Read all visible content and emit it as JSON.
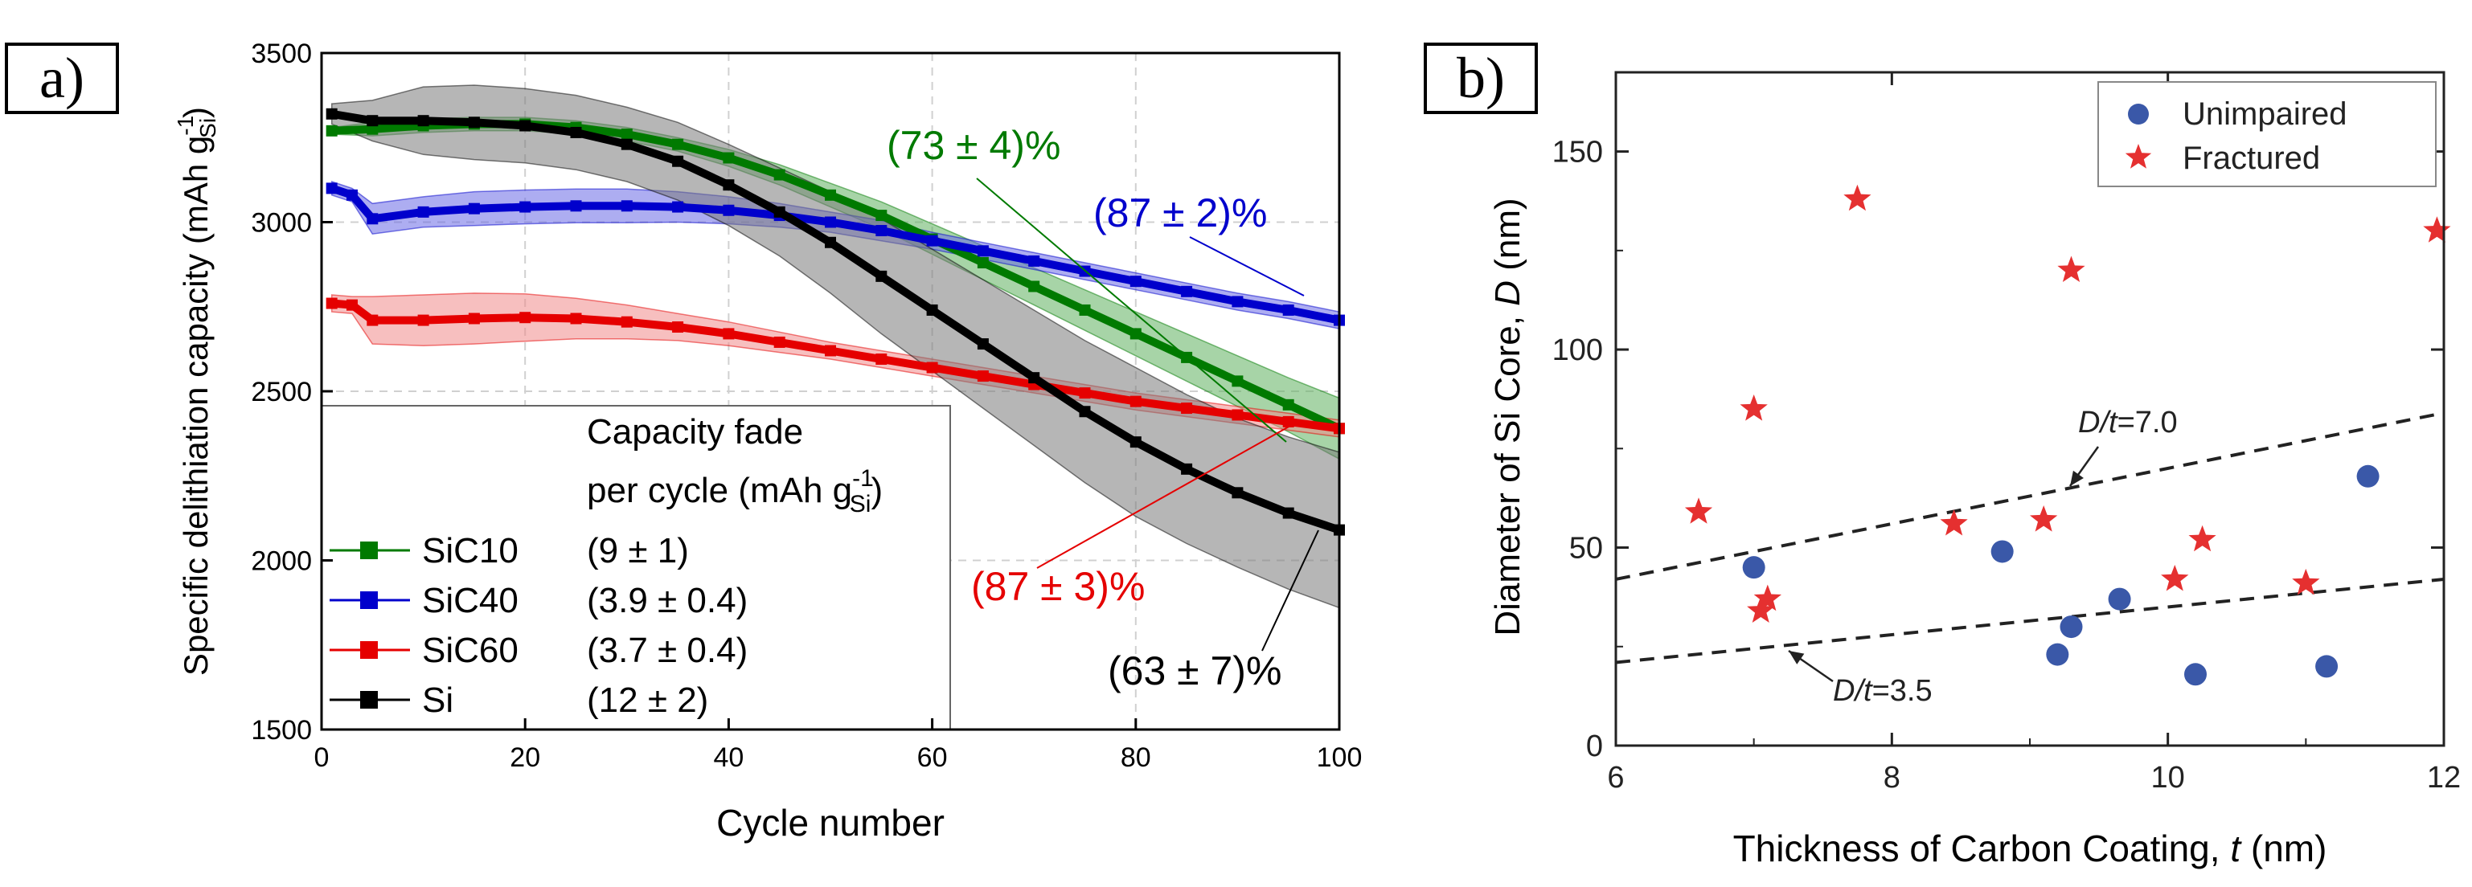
{
  "panels": [
    {
      "label": "a)"
    },
    {
      "label": "b)"
    }
  ],
  "chart_data": [
    {
      "type": "line",
      "xlabel": "Cycle number",
      "ylabel_main": "Specific delithiation capacity (mAh g",
      "ylabel_sup": "-1",
      "ylabel_sub": "Si",
      "ylabel_close": ")",
      "xlim": [
        0,
        100
      ],
      "ylim": [
        1500,
        3500
      ],
      "xticks": [
        "0",
        "20",
        "40",
        "60",
        "80",
        "100"
      ],
      "yticks": [
        "1500",
        "2000",
        "2500",
        "3000",
        "3500"
      ],
      "grid": true,
      "legend_header_1": "Capacity fade",
      "legend_header_2_main": "per cycle (mAh g",
      "legend_header_2_sup": "-1",
      "legend_header_2_sub": "Si",
      "legend_header_2_close": ")",
      "series": [
        {
          "name": "SiC10",
          "color": "#007a00",
          "band_color": "#5fb15f",
          "fade": "(9 ± 1)",
          "retention": "(73 ± 4)%",
          "x": [
            1,
            5,
            10,
            15,
            20,
            25,
            30,
            35,
            40,
            45,
            50,
            55,
            60,
            65,
            70,
            75,
            80,
            85,
            90,
            95,
            100
          ],
          "y": [
            3270,
            3275,
            3285,
            3290,
            3290,
            3280,
            3260,
            3230,
            3190,
            3140,
            3080,
            3020,
            2950,
            2880,
            2810,
            2740,
            2670,
            2600,
            2530,
            2460,
            2390
          ],
          "band": [
            10,
            20,
            20,
            20,
            20,
            20,
            20,
            20,
            25,
            30,
            35,
            40,
            45,
            50,
            55,
            60,
            65,
            70,
            75,
            80,
            90
          ]
        },
        {
          "name": "SiC40",
          "color": "#0000cc",
          "band_color": "#6a6ae6",
          "fade": "(3.9 ± 0.4)",
          "retention": "(87 ± 2)%",
          "x": [
            1,
            3,
            5,
            10,
            15,
            20,
            25,
            30,
            35,
            40,
            45,
            50,
            55,
            60,
            65,
            70,
            75,
            80,
            85,
            90,
            95,
            100
          ],
          "y": [
            3100,
            3080,
            3010,
            3030,
            3040,
            3045,
            3048,
            3048,
            3045,
            3035,
            3020,
            3000,
            2975,
            2945,
            2915,
            2885,
            2855,
            2825,
            2795,
            2765,
            2740,
            2710
          ],
          "band": [
            20,
            20,
            45,
            45,
            50,
            50,
            50,
            50,
            45,
            40,
            35,
            30,
            30,
            25,
            25,
            25,
            25,
            25,
            25,
            25,
            25,
            25
          ]
        },
        {
          "name": "SiC60",
          "color": "#e50000",
          "band_color": "#f08a8a",
          "fade": "(3.7 ± 0.4)",
          "retention": "(87 ± 3)%",
          "x": [
            1,
            3,
            5,
            10,
            15,
            20,
            25,
            30,
            35,
            40,
            45,
            50,
            55,
            60,
            65,
            70,
            75,
            80,
            85,
            90,
            95,
            100
          ],
          "y": [
            2760,
            2755,
            2710,
            2710,
            2715,
            2718,
            2715,
            2705,
            2690,
            2670,
            2645,
            2620,
            2595,
            2570,
            2545,
            2520,
            2495,
            2470,
            2450,
            2430,
            2410,
            2390
          ],
          "band": [
            25,
            25,
            70,
            75,
            75,
            70,
            60,
            50,
            40,
            35,
            30,
            25,
            25,
            25,
            25,
            25,
            25,
            25,
            25,
            25,
            25,
            25
          ]
        },
        {
          "name": "Si",
          "color": "#000000",
          "band_color": "#7a7a7a",
          "fade": "(12 ± 2)",
          "retention": "(63 ± 7)%",
          "x": [
            1,
            5,
            10,
            15,
            20,
            25,
            30,
            35,
            40,
            45,
            50,
            55,
            60,
            65,
            70,
            75,
            80,
            85,
            90,
            95,
            100
          ],
          "y": [
            3320,
            3300,
            3300,
            3295,
            3285,
            3265,
            3230,
            3180,
            3110,
            3030,
            2940,
            2840,
            2740,
            2640,
            2540,
            2440,
            2350,
            2270,
            2200,
            2140,
            2090
          ],
          "band": [
            30,
            60,
            100,
            110,
            110,
            110,
            110,
            115,
            120,
            130,
            150,
            170,
            180,
            190,
            200,
            210,
            220,
            220,
            220,
            225,
            230
          ]
        }
      ]
    },
    {
      "type": "scatter",
      "xlabel_main": "Thickness of Carbon Coating, ",
      "xlabel_var": "t",
      "xlabel_unit": " (nm)",
      "ylabel_main": "Diameter of Si Core, ",
      "ylabel_var": "D",
      "ylabel_unit": " (nm)",
      "xlim": [
        6,
        12
      ],
      "ylim": [
        0,
        170
      ],
      "xticks": [
        "6",
        "8",
        "10",
        "12"
      ],
      "yticks": [
        "0",
        "50",
        "100",
        "150"
      ],
      "grid": false,
      "legend_position": "top-right",
      "series": [
        {
          "name": "Unimpaired",
          "marker": "circle",
          "color": "#3a58a8",
          "points": [
            [
              7.0,
              45
            ],
            [
              8.8,
              49
            ],
            [
              9.2,
              23
            ],
            [
              9.3,
              30
            ],
            [
              9.65,
              37
            ],
            [
              10.2,
              18
            ],
            [
              11.15,
              20
            ],
            [
              11.45,
              68
            ]
          ]
        },
        {
          "name": "Fractured",
          "marker": "star",
          "color": "#e53030",
          "points": [
            [
              6.6,
              59
            ],
            [
              7.0,
              85
            ],
            [
              7.05,
              34
            ],
            [
              7.1,
              37
            ],
            [
              7.75,
              138
            ],
            [
              8.45,
              56
            ],
            [
              9.1,
              57
            ],
            [
              9.3,
              120
            ],
            [
              10.05,
              42
            ],
            [
              10.25,
              52
            ],
            [
              11.0,
              41
            ],
            [
              11.95,
              130
            ]
          ]
        }
      ],
      "lines": [
        {
          "label_var": "D/t",
          "label_val": "=7.0",
          "x": [
            6,
            12
          ],
          "y": [
            42,
            84
          ]
        },
        {
          "label_var": "D/t",
          "label_val": "=3.5",
          "x": [
            6,
            12
          ],
          "y": [
            21,
            42
          ]
        }
      ]
    }
  ]
}
